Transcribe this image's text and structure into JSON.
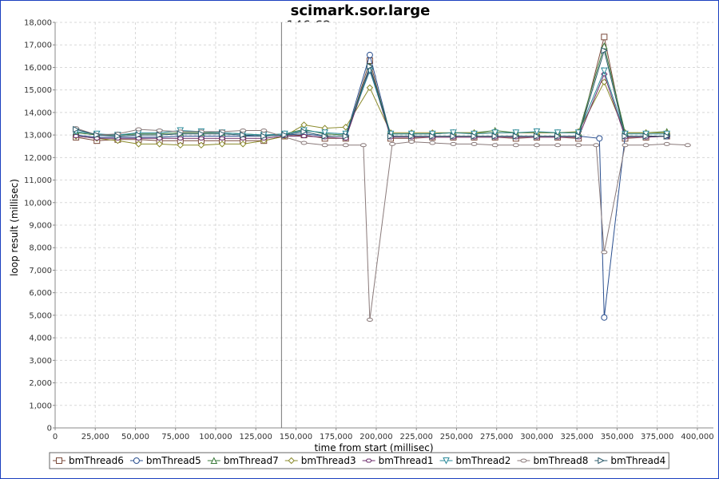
{
  "chart_data": {
    "type": "line",
    "title": "scimark.sor.large",
    "annotation": "146.62 ops",
    "marker_x": 141000,
    "xlabel": "time from start (millisec)",
    "ylabel": "loop result (millisec)",
    "xlim": [
      0,
      410000
    ],
    "ylim": [
      0,
      18000
    ],
    "xticks": [
      0,
      25000,
      50000,
      75000,
      100000,
      125000,
      150000,
      175000,
      200000,
      225000,
      250000,
      275000,
      300000,
      325000,
      350000,
      375000,
      400000
    ],
    "xtick_labels": [
      "0",
      "25,000",
      "50,000",
      "75,000",
      "100,000",
      "125,000",
      "150,000",
      "175,000",
      "200,000",
      "225,000",
      "250,000",
      "275,000",
      "300,000",
      "325,000",
      "350,000",
      "375,000",
      "400,000"
    ],
    "yticks": [
      0,
      1000,
      2000,
      3000,
      4000,
      5000,
      6000,
      7000,
      8000,
      9000,
      10000,
      11000,
      12000,
      13000,
      14000,
      15000,
      16000,
      17000,
      18000
    ],
    "ytick_labels": [
      "0",
      "1,000",
      "2,000",
      "3,000",
      "4,000",
      "5,000",
      "6,000",
      "7,000",
      "8,000",
      "9,000",
      "10,000",
      "11,000",
      "12,000",
      "13,000",
      "14,000",
      "15,000",
      "16,000",
      "17,000",
      "18,000"
    ],
    "grid": true,
    "legend_position": "bottom",
    "series": [
      {
        "name": "bmThread6",
        "color": "#7a4a3a",
        "marker": "square",
        "x": [
          13000,
          26000,
          39000,
          52000,
          65000,
          78000,
          91000,
          104000,
          117000,
          130000,
          143000,
          155000,
          168000,
          181000,
          196000,
          209000,
          222000,
          235000,
          248000,
          261000,
          274000,
          287000,
          300000,
          313000,
          326000,
          342000,
          355000,
          368000,
          381000
        ],
        "y": [
          12900,
          12750,
          12800,
          12800,
          12750,
          12750,
          12750,
          12750,
          12750,
          12750,
          12950,
          13000,
          12850,
          12850,
          16300,
          12850,
          12850,
          12900,
          12900,
          12900,
          12900,
          12850,
          12900,
          12900,
          12850,
          17350,
          12850,
          12900,
          12950
        ]
      },
      {
        "name": "bmThread5",
        "color": "#2a4f8f",
        "marker": "circle",
        "x": [
          13000,
          26000,
          39000,
          52000,
          65000,
          78000,
          91000,
          104000,
          117000,
          130000,
          143000,
          155000,
          168000,
          181000,
          196000,
          209000,
          222000,
          235000,
          248000,
          261000,
          274000,
          287000,
          300000,
          313000,
          326000,
          339000,
          342000,
          355000,
          368000,
          381000
        ],
        "y": [
          13000,
          12900,
          12900,
          12900,
          12900,
          12950,
          12950,
          12950,
          12950,
          12950,
          13000,
          13050,
          12950,
          12950,
          16550,
          12950,
          12950,
          12950,
          12950,
          12950,
          12950,
          12950,
          12950,
          12950,
          12950,
          12850,
          4900,
          12950,
          12950,
          12950
        ]
      },
      {
        "name": "bmThread7",
        "color": "#3a7a3a",
        "marker": "triangle",
        "x": [
          13000,
          26000,
          39000,
          52000,
          65000,
          78000,
          91000,
          104000,
          117000,
          130000,
          143000,
          155000,
          168000,
          181000,
          196000,
          209000,
          222000,
          235000,
          248000,
          261000,
          274000,
          287000,
          300000,
          313000,
          326000,
          342000,
          355000,
          368000,
          381000
        ],
        "y": [
          13100,
          13000,
          13000,
          13050,
          13050,
          13100,
          13100,
          13100,
          13050,
          13000,
          13050,
          13250,
          13050,
          13000,
          16050,
          13050,
          13050,
          13050,
          13100,
          13100,
          13200,
          13100,
          13100,
          13100,
          13100,
          16950,
          13100,
          13100,
          13150
        ]
      },
      {
        "name": "bmThread3",
        "color": "#8a8a2a",
        "marker": "diamond",
        "x": [
          13000,
          26000,
          39000,
          52000,
          65000,
          78000,
          91000,
          104000,
          117000,
          130000,
          143000,
          155000,
          168000,
          181000,
          196000,
          209000,
          222000,
          235000,
          248000,
          261000,
          274000,
          287000,
          300000,
          313000,
          326000,
          342000,
          355000,
          368000,
          381000
        ],
        "y": [
          12950,
          12850,
          12750,
          12600,
          12600,
          12550,
          12550,
          12600,
          12600,
          12750,
          12950,
          13450,
          13300,
          13350,
          15100,
          13100,
          13100,
          13100,
          13100,
          13100,
          13100,
          13100,
          13100,
          13100,
          13150,
          15350,
          13100,
          13100,
          13100
        ]
      },
      {
        "name": "bmThread1",
        "color": "#6a2a6a",
        "marker": "hexagon",
        "x": [
          13000,
          26000,
          39000,
          52000,
          65000,
          78000,
          91000,
          104000,
          117000,
          130000,
          143000,
          155000,
          168000,
          181000,
          196000,
          209000,
          222000,
          235000,
          248000,
          261000,
          274000,
          287000,
          300000,
          313000,
          326000,
          342000,
          355000,
          368000,
          381000
        ],
        "y": [
          12950,
          12850,
          12850,
          12850,
          12850,
          12850,
          12850,
          12850,
          12850,
          12850,
          12950,
          12950,
          12900,
          12850,
          15950,
          12900,
          12900,
          12900,
          12900,
          12900,
          12900,
          12900,
          12900,
          12900,
          12900,
          15700,
          12900,
          12900,
          12950
        ]
      },
      {
        "name": "bmThread2",
        "color": "#2a8a9a",
        "marker": "triangle-down",
        "x": [
          13000,
          26000,
          39000,
          52000,
          65000,
          78000,
          91000,
          104000,
          117000,
          130000,
          143000,
          155000,
          168000,
          181000,
          196000,
          209000,
          222000,
          235000,
          248000,
          261000,
          274000,
          287000,
          300000,
          313000,
          326000,
          342000,
          355000,
          368000,
          381000
        ],
        "y": [
          13150,
          13050,
          13000,
          13100,
          13100,
          13200,
          13150,
          13100,
          13050,
          13000,
          13050,
          13200,
          13100,
          13050,
          15850,
          13050,
          13050,
          13050,
          13100,
          13050,
          13100,
          13100,
          13150,
          13100,
          13100,
          15850,
          13050,
          13050,
          13050
        ]
      },
      {
        "name": "bmThread8",
        "color": "#8a7a7a",
        "marker": "ellipse",
        "x": [
          13000,
          26000,
          39000,
          52000,
          65000,
          78000,
          91000,
          104000,
          117000,
          130000,
          155000,
          168000,
          181000,
          192000,
          196000,
          210000,
          222000,
          235000,
          248000,
          261000,
          274000,
          287000,
          300000,
          313000,
          326000,
          337000,
          342000,
          355000,
          368000,
          381000,
          394000
        ],
        "y": [
          13300,
          13000,
          13050,
          13250,
          13200,
          13150,
          13150,
          13150,
          13200,
          13200,
          12650,
          12550,
          12550,
          12550,
          4800,
          12600,
          12700,
          12650,
          12600,
          12600,
          12550,
          12550,
          12550,
          12550,
          12550,
          12550,
          7800,
          12550,
          12550,
          12600,
          12550
        ]
      },
      {
        "name": "bmThread4",
        "color": "#2a5a6a",
        "marker": "triangle-right",
        "x": [
          13000,
          26000,
          39000,
          52000,
          65000,
          78000,
          91000,
          104000,
          117000,
          130000,
          143000,
          155000,
          168000,
          181000,
          196000,
          209000,
          222000,
          235000,
          248000,
          261000,
          274000,
          287000,
          300000,
          313000,
          326000,
          342000,
          355000,
          368000,
          381000
        ],
        "y": [
          13250,
          13000,
          12950,
          13000,
          13000,
          13050,
          13050,
          13050,
          13000,
          12950,
          13000,
          13150,
          12950,
          12950,
          16050,
          12950,
          12950,
          12950,
          12950,
          12950,
          12950,
          12950,
          12950,
          12950,
          12950,
          16750,
          12950,
          12950,
          12950
        ]
      }
    ]
  }
}
